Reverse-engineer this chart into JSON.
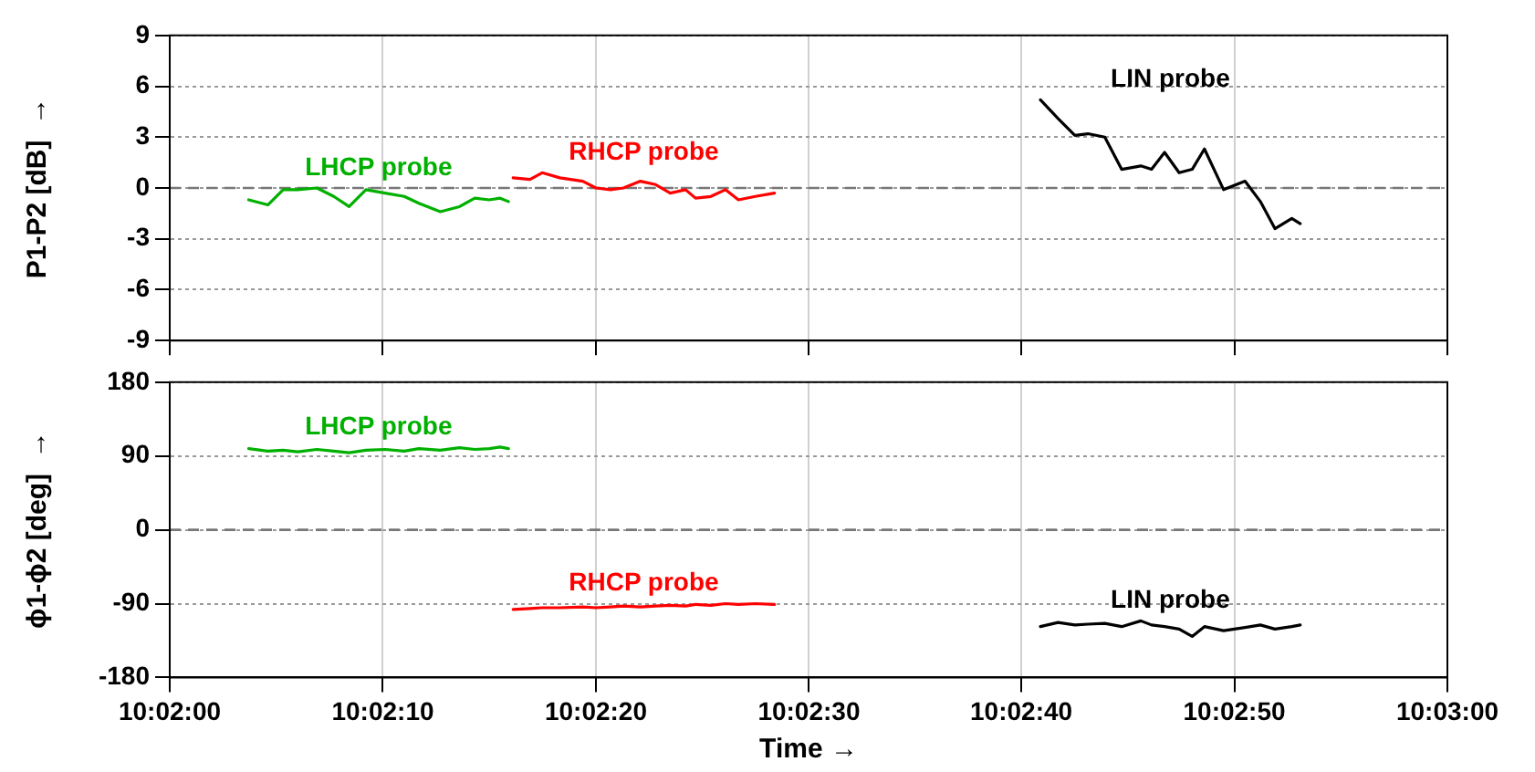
{
  "chart_data": [
    {
      "type": "line",
      "ylabel": "P1-P2 [dB]  →",
      "xlim": [
        10.03333,
        10.05
      ],
      "xticks": [
        {
          "value": 10.03333,
          "label": null
        },
        {
          "value": 10.03611,
          "label": null
        },
        {
          "value": 10.03889,
          "label": null
        },
        {
          "value": 10.04167,
          "label": null
        },
        {
          "value": 10.04444,
          "label": null
        },
        {
          "value": 10.04722,
          "label": null
        },
        {
          "value": 10.05,
          "label": null
        }
      ],
      "ylim": [
        -9,
        9
      ],
      "yticks": [
        -9,
        -6,
        -3,
        0,
        3,
        6,
        9
      ],
      "tick_labels": "y",
      "ref_lines": [
        {
          "axis": "y",
          "value": 0,
          "color": "#777777",
          "line_style": "dashed"
        }
      ],
      "grid": true,
      "legend": false,
      "marker": "none",
      "line_style": "solid",
      "series": [
        {
          "name": "LHCP probe",
          "color": "#00b000",
          "x": [
            10.03436,
            10.03461,
            10.03481,
            10.035,
            10.03525,
            10.03547,
            10.03567,
            10.03589,
            10.03614,
            10.03639,
            10.03658,
            10.03686,
            10.03711,
            10.03731,
            10.0375,
            10.03764,
            10.03775
          ],
          "values": [
            -0.7,
            -1.0,
            -0.1,
            -0.1,
            0.0,
            -0.5,
            -1.1,
            -0.1,
            -0.3,
            -0.5,
            -0.9,
            -1.4,
            -1.1,
            -0.6,
            -0.7,
            -0.6,
            -0.8
          ]
        },
        {
          "name": "RHCP probe",
          "color": "#ff0000",
          "x": [
            10.03781,
            10.03803,
            10.03819,
            10.03842,
            10.03872,
            10.03889,
            10.03908,
            10.03925,
            10.03947,
            10.03967,
            10.03986,
            10.04006,
            10.04019,
            10.04039,
            10.04058,
            10.04075,
            10.04097,
            10.04122
          ],
          "values": [
            0.6,
            0.5,
            0.9,
            0.6,
            0.4,
            0.0,
            -0.1,
            0.0,
            0.4,
            0.2,
            -0.3,
            -0.1,
            -0.6,
            -0.5,
            -0.1,
            -0.7,
            -0.5,
            -0.3
          ]
        },
        {
          "name": "LIN probe",
          "color": "#000000",
          "x": [
            10.04469,
            10.04492,
            10.04514,
            10.04531,
            10.04553,
            10.04575,
            10.046,
            10.04614,
            10.04631,
            10.0465,
            10.04667,
            10.04683,
            10.04708,
            10.04736,
            10.04756,
            10.04775,
            10.04797,
            10.04808
          ],
          "values": [
            5.2,
            4.1,
            3.1,
            3.2,
            3.0,
            1.1,
            1.3,
            1.1,
            2.1,
            0.9,
            1.1,
            2.3,
            -0.1,
            0.4,
            -0.8,
            -2.4,
            -1.8,
            -2.1
          ]
        }
      ]
    },
    {
      "type": "line",
      "xlabel": "Time →",
      "ylabel": "ϕ1-ϕ2 [deg]  →",
      "xlim": [
        10.03333,
        10.05
      ],
      "xticks": [
        {
          "value": 10.03333,
          "label": "10:02:00"
        },
        {
          "value": 10.03611,
          "label": "10:02:10"
        },
        {
          "value": 10.03889,
          "label": "10:02:20"
        },
        {
          "value": 10.04167,
          "label": "10:02:30"
        },
        {
          "value": 10.04444,
          "label": "10:02:40"
        },
        {
          "value": 10.04722,
          "label": "10:02:50"
        },
        {
          "value": 10.05,
          "label": "10:03:00"
        }
      ],
      "ylim": [
        -180,
        180
      ],
      "yticks": [
        -180,
        -90,
        0,
        90,
        180
      ],
      "ref_lines": [
        {
          "axis": "y",
          "value": 0,
          "color": "#777777",
          "line_style": "dashed"
        }
      ],
      "grid": true,
      "legend": false,
      "marker": "none",
      "line_style": "solid",
      "series": [
        {
          "name": "LHCP probe",
          "color": "#00b000",
          "x": [
            10.03436,
            10.03461,
            10.03481,
            10.035,
            10.03525,
            10.03547,
            10.03567,
            10.03589,
            10.03614,
            10.03639,
            10.03658,
            10.03686,
            10.03711,
            10.03731,
            10.0375,
            10.03764,
            10.03775
          ],
          "values": [
            99,
            96,
            97,
            95,
            98,
            96,
            94,
            97,
            98,
            96,
            99,
            97,
            100,
            98,
            99,
            101,
            99
          ]
        },
        {
          "name": "RHCP probe",
          "color": "#ff0000",
          "x": [
            10.03781,
            10.03803,
            10.03819,
            10.03842,
            10.03872,
            10.03889,
            10.03908,
            10.03925,
            10.03947,
            10.03967,
            10.03986,
            10.04006,
            10.04019,
            10.04039,
            10.04058,
            10.04075,
            10.04097,
            10.04122
          ],
          "values": [
            -97,
            -96,
            -95,
            -95,
            -94,
            -95,
            -94,
            -93,
            -94,
            -93,
            -92,
            -93,
            -91,
            -92,
            -90,
            -91,
            -90,
            -91
          ]
        },
        {
          "name": "LIN probe",
          "color": "#000000",
          "x": [
            10.04469,
            10.04492,
            10.04514,
            10.04531,
            10.04553,
            10.04575,
            10.046,
            10.04614,
            10.04631,
            10.0465,
            10.04667,
            10.04683,
            10.04708,
            10.04736,
            10.04756,
            10.04775,
            10.04797,
            10.04808
          ],
          "values": [
            -118,
            -113,
            -116,
            -115,
            -114,
            -118,
            -111,
            -116,
            -118,
            -121,
            -130,
            -118,
            -123,
            -119,
            -116,
            -121,
            -118,
            -116
          ]
        }
      ]
    }
  ]
}
